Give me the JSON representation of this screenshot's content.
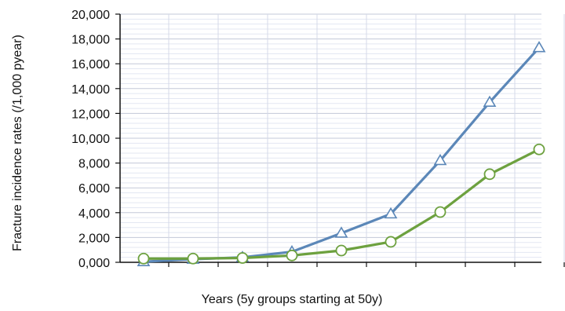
{
  "chart_data": {
    "type": "line",
    "title": "",
    "xlabel": "Years (5y groups starting at 50y)",
    "ylabel": "Fracture incidence rates (/1,000 pyear)",
    "ylim": [
      0,
      20000
    ],
    "yticks": [
      "0,000",
      "2,000",
      "4,000",
      "6,000",
      "8,000",
      "10,000",
      "12,000",
      "14,000",
      "16,000",
      "18,000",
      "20,000"
    ],
    "grid": true,
    "legend": "none",
    "x": [
      1,
      2,
      3,
      4,
      5,
      6,
      7,
      8,
      9
    ],
    "series": [
      {
        "marker": "triangle",
        "color": "#5b87b8",
        "values": [
          50,
          250,
          400,
          850,
          2350,
          3900,
          8200,
          12900,
          17300
        ]
      },
      {
        "marker": "circle",
        "color": "#6da13f",
        "values": [
          300,
          300,
          350,
          550,
          950,
          1650,
          4050,
          7100,
          9100
        ]
      }
    ]
  }
}
